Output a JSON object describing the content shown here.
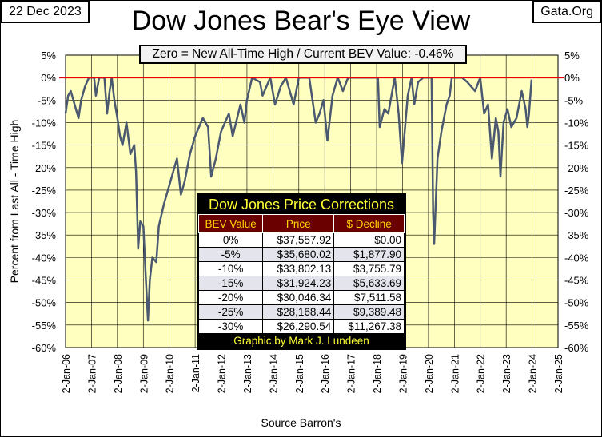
{
  "header": {
    "date": "22 Dec 2023",
    "site": "Gata.Org"
  },
  "chart_data": {
    "type": "line",
    "title": "Dow Jones Bear's Eye View",
    "subtitle": "Zero = New All-Time High / Current BEV Value:  -0.46%",
    "ylabel": "Percent from Last All - Time High",
    "xlabel": "Source Barron's",
    "ylim": [
      -60,
      5
    ],
    "xlim": [
      2006,
      2025
    ],
    "y_ticks": [
      "5%",
      "0%",
      "-5%",
      "-10%",
      "-15%",
      "-20%",
      "-25%",
      "-30%",
      "-35%",
      "-40%",
      "-45%",
      "-50%",
      "-55%",
      "-60%"
    ],
    "x_ticks": [
      "2-Jan-06",
      "2-Jan-07",
      "2-Jan-08",
      "2-Jan-09",
      "2-Jan-10",
      "2-Jan-11",
      "2-Jan-12",
      "2-Jan-13",
      "2-Jan-14",
      "2-Jan-15",
      "2-Jan-16",
      "2-Jan-17",
      "2-Jan-18",
      "2-Jan-19",
      "2-Jan-20",
      "2-Jan-21",
      "2-Jan-22",
      "2-Jan-23",
      "2-Jan-24",
      "2-Jan-25"
    ],
    "grid": true,
    "reference_line": {
      "value": 0,
      "color": "#e00000"
    },
    "series": [
      {
        "name": "Dow Jones BEV",
        "color": "#4a5870",
        "points": [
          [
            2006.0,
            -8
          ],
          [
            2006.1,
            -4
          ],
          [
            2006.2,
            -3
          ],
          [
            2006.35,
            -6
          ],
          [
            2006.5,
            -9
          ],
          [
            2006.6,
            -5
          ],
          [
            2006.75,
            -2
          ],
          [
            2006.9,
            0
          ],
          [
            2007.1,
            0
          ],
          [
            2007.17,
            -4
          ],
          [
            2007.3,
            0
          ],
          [
            2007.5,
            0
          ],
          [
            2007.6,
            -8
          ],
          [
            2007.7,
            -3
          ],
          [
            2007.78,
            0
          ],
          [
            2007.88,
            -5
          ],
          [
            2008.0,
            -9
          ],
          [
            2008.1,
            -13
          ],
          [
            2008.2,
            -15
          ],
          [
            2008.35,
            -10
          ],
          [
            2008.5,
            -17
          ],
          [
            2008.65,
            -15
          ],
          [
            2008.72,
            -21
          ],
          [
            2008.8,
            -38
          ],
          [
            2008.88,
            -32
          ],
          [
            2009.0,
            -33
          ],
          [
            2009.1,
            -45
          ],
          [
            2009.18,
            -54
          ],
          [
            2009.25,
            -45
          ],
          [
            2009.35,
            -40
          ],
          [
            2009.5,
            -41
          ],
          [
            2009.6,
            -33
          ],
          [
            2009.8,
            -28
          ],
          [
            2010.0,
            -24
          ],
          [
            2010.3,
            -18
          ],
          [
            2010.45,
            -26
          ],
          [
            2010.6,
            -23
          ],
          [
            2010.8,
            -17
          ],
          [
            2011.0,
            -13
          ],
          [
            2011.3,
            -9
          ],
          [
            2011.5,
            -11
          ],
          [
            2011.62,
            -22
          ],
          [
            2011.8,
            -18
          ],
          [
            2012.0,
            -12
          ],
          [
            2012.3,
            -8
          ],
          [
            2012.45,
            -13
          ],
          [
            2012.75,
            -6
          ],
          [
            2012.9,
            -10
          ],
          [
            2013.0,
            -5
          ],
          [
            2013.2,
            0
          ],
          [
            2013.5,
            -1
          ],
          [
            2013.6,
            -4
          ],
          [
            2013.9,
            0
          ],
          [
            2014.08,
            -6
          ],
          [
            2014.3,
            -2
          ],
          [
            2014.5,
            0
          ],
          [
            2014.8,
            -6
          ],
          [
            2015.0,
            0
          ],
          [
            2015.4,
            0
          ],
          [
            2015.65,
            -10
          ],
          [
            2015.8,
            -8
          ],
          [
            2015.95,
            -5
          ],
          [
            2016.1,
            -14
          ],
          [
            2016.3,
            -4
          ],
          [
            2016.5,
            0
          ],
          [
            2016.7,
            -3
          ],
          [
            2016.9,
            0
          ],
          [
            2017.5,
            0
          ],
          [
            2018.05,
            0
          ],
          [
            2018.12,
            -11
          ],
          [
            2018.3,
            -7
          ],
          [
            2018.45,
            -8
          ],
          [
            2018.7,
            0
          ],
          [
            2018.85,
            -8
          ],
          [
            2018.98,
            -19
          ],
          [
            2019.2,
            -4
          ],
          [
            2019.35,
            0
          ],
          [
            2019.45,
            -6
          ],
          [
            2019.6,
            -1
          ],
          [
            2019.8,
            0
          ],
          [
            2020.12,
            0
          ],
          [
            2020.18,
            -30
          ],
          [
            2020.22,
            -37
          ],
          [
            2020.35,
            -18
          ],
          [
            2020.5,
            -12
          ],
          [
            2020.7,
            -6
          ],
          [
            2020.82,
            -4
          ],
          [
            2020.9,
            0
          ],
          [
            2021.3,
            0
          ],
          [
            2021.5,
            -1
          ],
          [
            2021.8,
            -3
          ],
          [
            2022.0,
            0
          ],
          [
            2022.15,
            -8
          ],
          [
            2022.3,
            -6
          ],
          [
            2022.45,
            -18
          ],
          [
            2022.6,
            -9
          ],
          [
            2022.7,
            -12
          ],
          [
            2022.78,
            -22
          ],
          [
            2022.9,
            -10
          ],
          [
            2023.05,
            -7
          ],
          [
            2023.2,
            -11
          ],
          [
            2023.4,
            -9
          ],
          [
            2023.6,
            -3
          ],
          [
            2023.75,
            -7
          ],
          [
            2023.82,
            -11
          ],
          [
            2023.88,
            -8
          ],
          [
            2023.98,
            -0.46
          ]
        ]
      }
    ]
  },
  "table": {
    "title": "Dow Jones Price Corrections",
    "headers": [
      "BEV Value",
      "Price",
      "$ Decline"
    ],
    "rows": [
      [
        "0%",
        "$37,557.92",
        "$0.00"
      ],
      [
        "-5%",
        "$35,680.02",
        "$1,877.90"
      ],
      [
        "-10%",
        "$33,802.13",
        "$3,755.79"
      ],
      [
        "-15%",
        "$31,924.23",
        "$5,633.69"
      ],
      [
        "-20%",
        "$30,046.34",
        "$7,511.58"
      ],
      [
        "-25%",
        "$28,168.44",
        "$9,389.48"
      ],
      [
        "-30%",
        "$26,290.54",
        "$11,267.38"
      ]
    ],
    "footer": "Graphic by Mark J. Lundeen"
  }
}
